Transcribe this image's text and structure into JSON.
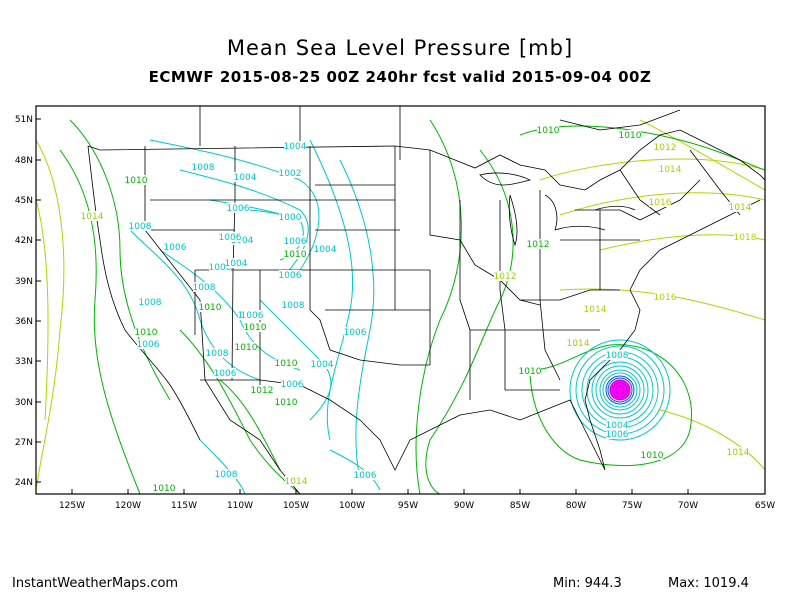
{
  "header": {
    "title": "Mean Sea Level Pressure [mb]",
    "subtitle": "ECMWF 2015-08-25 00Z 240hr fcst valid 2015-09-04 00Z"
  },
  "footer": {
    "site": "InstantWeatherMaps.com",
    "min_text": "Min: 944.3",
    "max_text": "Max: 1019.4"
  },
  "axes": {
    "lat_labels": [
      "51N",
      "48N",
      "45N",
      "42N",
      "39N",
      "36N",
      "33N",
      "30N",
      "27N",
      "24N"
    ],
    "lon_labels": [
      "125W",
      "120W",
      "115W",
      "110W",
      "105W",
      "100W",
      "95W",
      "90W",
      "85W",
      "80W",
      "75W",
      "70W",
      "65W"
    ]
  },
  "colors": {
    "low_pressure": "#00c8c8",
    "mid_pressure": "#00b400",
    "high_pressure": "#b4d200",
    "storm_center": "#ff00ff",
    "map_lines": "#000000"
  },
  "contour_labels": [
    {
      "text": "1010",
      "color": "#00b400"
    },
    {
      "text": "1010",
      "color": "#00b400"
    },
    {
      "text": "1012",
      "color": "#9ad200"
    },
    {
      "text": "1014",
      "color": "#b4d200"
    },
    {
      "text": "1016",
      "color": "#b4d200"
    },
    {
      "text": "1018",
      "color": "#b4d200"
    },
    {
      "text": "1016",
      "color": "#b4d200"
    },
    {
      "text": "1014",
      "color": "#b4d200"
    },
    {
      "text": "1012",
      "color": "#00b400"
    },
    {
      "text": "1014",
      "color": "#9ad200"
    },
    {
      "text": "1012",
      "color": "#9ad200"
    },
    {
      "text": "1010",
      "color": "#00b400"
    },
    {
      "text": "1008",
      "color": "#00c8c8"
    },
    {
      "text": "1004",
      "color": "#00c8c8"
    },
    {
      "text": "1006",
      "color": "#00c8c8"
    },
    {
      "text": "1010",
      "color": "#00b400"
    },
    {
      "text": "1014",
      "color": "#9ad200"
    },
    {
      "text": "1004",
      "color": "#00c8c8"
    },
    {
      "text": "1008",
      "color": "#00c8c8"
    },
    {
      "text": "1004",
      "color": "#00c8c8"
    },
    {
      "text": "1002",
      "color": "#00c8c8"
    },
    {
      "text": "1000",
      "color": "#00c8c8"
    },
    {
      "text": "1006",
      "color": "#00c8c8"
    },
    {
      "text": "1004",
      "color": "#00c8c8"
    },
    {
      "text": "1010",
      "color": "#00b400"
    },
    {
      "text": "1014",
      "color": "#9ad200"
    },
    {
      "text": "1010",
      "color": "#00b400"
    },
    {
      "text": "1008",
      "color": "#00c8c8"
    },
    {
      "text": "1006",
      "color": "#00c8c8"
    },
    {
      "text": "1006",
      "color": "#00c8c8"
    },
    {
      "text": "1006",
      "color": "#00c8c8"
    },
    {
      "text": "1004",
      "color": "#00c8c8"
    },
    {
      "text": "1006",
      "color": "#00c8c8"
    },
    {
      "text": "1008",
      "color": "#00c8c8"
    },
    {
      "text": "1006",
      "color": "#00c8c8"
    },
    {
      "text": "1010",
      "color": "#00b400"
    },
    {
      "text": "1008",
      "color": "#00c8c8"
    },
    {
      "text": "1008",
      "color": "#00c8c8"
    },
    {
      "text": "1010",
      "color": "#00b400"
    },
    {
      "text": "1010",
      "color": "#00b400"
    },
    {
      "text": "1006",
      "color": "#00c8c8"
    },
    {
      "text": "1008",
      "color": "#00c8c8"
    },
    {
      "text": "1006",
      "color": "#00c8c8"
    },
    {
      "text": "1012",
      "color": "#00b400"
    },
    {
      "text": "1010",
      "color": "#00b400"
    },
    {
      "text": "1004",
      "color": "#00c8c8"
    },
    {
      "text": "1006",
      "color": "#00c8c8"
    },
    {
      "text": "1008",
      "color": "#00c8c8"
    },
    {
      "text": "1014",
      "color": "#9ad200"
    },
    {
      "text": "1010",
      "color": "#00b400"
    },
    {
      "text": "1006",
      "color": "#00c8c8"
    },
    {
      "text": "1006",
      "color": "#00c8c8"
    },
    {
      "text": "1006",
      "color": "#00c8c8"
    },
    {
      "text": "1010",
      "color": "#00b400"
    },
    {
      "text": "1004",
      "color": "#00c8c8"
    },
    {
      "text": "1006",
      "color": "#00c8c8"
    },
    {
      "text": "1010",
      "color": "#00b400"
    },
    {
      "text": "1014",
      "color": "#9ad200"
    },
    {
      "text": "1008",
      "color": "#00c8c8"
    }
  ]
}
